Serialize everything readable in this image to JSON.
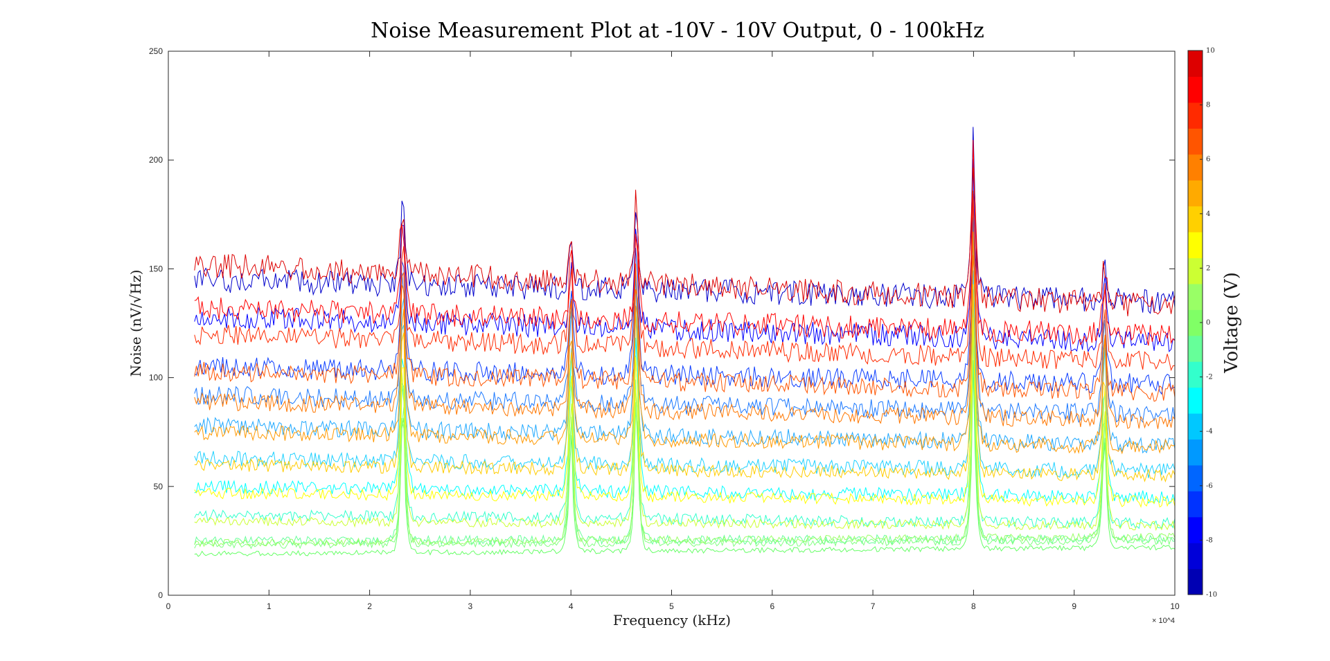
{
  "chart_data": {
    "type": "line",
    "title": "Noise Measurement Plot at -10V - 10V Output, 0 - 100kHz",
    "xlabel": "Frequency (kHz)",
    "ylabel": "Noise (nV/√Hz)",
    "xlim": [
      0,
      100000
    ],
    "ylim": [
      0,
      250
    ],
    "x_ticks": [
      0,
      10000,
      20000,
      30000,
      40000,
      50000,
      60000,
      70000,
      80000,
      90000,
      100000
    ],
    "x_tick_labels": [
      "0",
      "1",
      "2",
      "3",
      "4",
      "5",
      "6",
      "7",
      "8",
      "9",
      "10"
    ],
    "x_exponent_label": "× 10^4",
    "y_ticks": [
      0,
      50,
      100,
      150,
      200,
      250
    ],
    "y_tick_labels": [
      "0",
      "50",
      "100",
      "150",
      "200",
      "250"
    ],
    "grid": false,
    "x_data_range": [
      2600,
      100000
    ],
    "peaks": [
      {
        "x": 23300,
        "peak_y": 198
      },
      {
        "x": 40000,
        "peak_y": 168
      },
      {
        "x": 46500,
        "peak_y": 194
      },
      {
        "x": 80000,
        "peak_y": 226
      },
      {
        "x": 93000,
        "peak_y": 158
      }
    ],
    "series": [
      {
        "voltage": -10,
        "color": "#0000cc",
        "y_start": 145,
        "y_end": 135
      },
      {
        "voltage": -9,
        "color": "#0000ff",
        "y_start": 128,
        "y_end": 116
      },
      {
        "voltage": -8,
        "color": "#0a3cff",
        "y_start": 105,
        "y_end": 97
      },
      {
        "voltage": -7,
        "color": "#1a78ff",
        "y_start": 92,
        "y_end": 83
      },
      {
        "voltage": -6,
        "color": "#1fa8ff",
        "y_start": 78,
        "y_end": 69
      },
      {
        "voltage": -5,
        "color": "#1dd0ff",
        "y_start": 63,
        "y_end": 57
      },
      {
        "voltage": -4,
        "color": "#00ffff",
        "y_start": 50,
        "y_end": 45
      },
      {
        "voltage": -3,
        "color": "#33ffcc",
        "y_start": 37,
        "y_end": 33
      },
      {
        "voltage": -2,
        "color": "#66ff99",
        "y_start": 25,
        "y_end": 26
      },
      {
        "voltage": -1,
        "color": "#80ff80",
        "y_start": 23,
        "y_end": 25
      },
      {
        "voltage": 0,
        "color": "#66ff66",
        "y_start": 19,
        "y_end": 22
      },
      {
        "voltage": 1,
        "color": "#99ff66",
        "y_start": 24,
        "y_end": 27
      },
      {
        "voltage": 2,
        "color": "#ccff33",
        "y_start": 34,
        "y_end": 32
      },
      {
        "voltage": 3,
        "color": "#ffff00",
        "y_start": 47,
        "y_end": 43
      },
      {
        "voltage": 4,
        "color": "#ffcc00",
        "y_start": 60,
        "y_end": 55
      },
      {
        "voltage": 5,
        "color": "#ff9900",
        "y_start": 75,
        "y_end": 68
      },
      {
        "voltage": 6,
        "color": "#ff7700",
        "y_start": 89,
        "y_end": 80
      },
      {
        "voltage": 7,
        "color": "#ff5500",
        "y_start": 103,
        "y_end": 93
      },
      {
        "voltage": 8,
        "color": "#ff2a00",
        "y_start": 120,
        "y_end": 107
      },
      {
        "voltage": 9,
        "color": "#ff0000",
        "y_start": 132,
        "y_end": 119
      },
      {
        "voltage": 10,
        "color": "#dd0000",
        "y_start": 152,
        "y_end": 133
      }
    ]
  },
  "colorbar": {
    "label": "Voltage (V)",
    "range": [
      -10,
      10
    ],
    "tick_values": [
      -10,
      -8,
      -6,
      -4,
      -2,
      0,
      2,
      4,
      6,
      8,
      10
    ],
    "tick_labels": [
      "-10",
      "-8",
      "-6",
      "-4",
      "-2",
      "0",
      "2",
      "4",
      "6",
      "8",
      "10"
    ],
    "colors": [
      "#0000b3",
      "#0000d9",
      "#0000ff",
      "#0033ff",
      "#0066ff",
      "#0099ff",
      "#00c8ff",
      "#00ffff",
      "#33ffcc",
      "#66ff99",
      "#80ff66",
      "#99ff66",
      "#ccff33",
      "#ffff00",
      "#ffd000",
      "#ffaa00",
      "#ff8000",
      "#ff5500",
      "#ff2a00",
      "#ff0000",
      "#dd0000"
    ]
  }
}
